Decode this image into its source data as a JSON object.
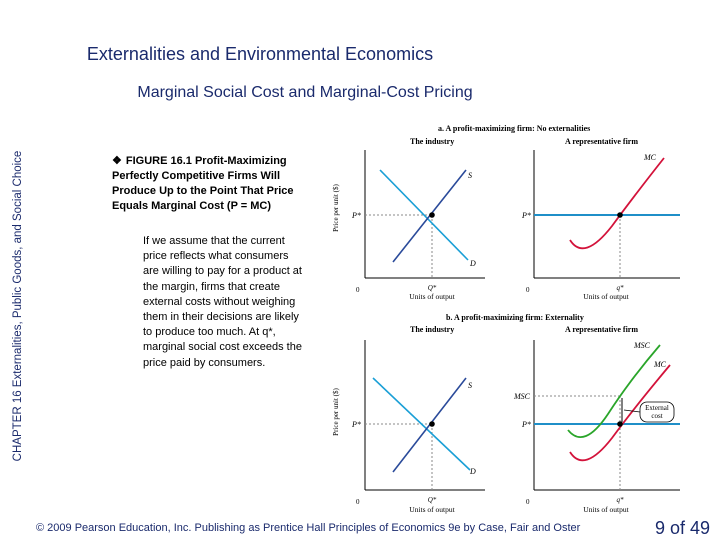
{
  "header": {
    "title": "Externalities and Environmental Economics",
    "subtitle": "Marginal Social Cost and Marginal-Cost Pricing"
  },
  "sidebar": {
    "chapter": "CHAPTER 16",
    "chapter_title": "Externalities, Public Goods, and Social Choice"
  },
  "caption": {
    "figure_label": "FIGURE 16.1",
    "figure_title": "Profit-Maximizing Perfectly Competitive Firms Will Produce Up to the Point That Price Equals Marginal Cost (P = MC)"
  },
  "body_text": "If we assume that the current price reflects what consumers are willing to pay for a product at the margin, firms that create external costs without weighing them in their decisions are likely to produce too much. At q*, marginal social cost exceeds the price paid by consumers.",
  "footer": {
    "copyright": "© 2009 Pearson Education, Inc. Publishing as Prentice Hall   Principles of Economics 9e by Case, Fair and Oster",
    "page": "9 of 49"
  },
  "diagram": {
    "panel_a": {
      "title": "a. A profit-maximizing firm: No externalities",
      "industry_label": "The industry",
      "firm_label": "A representative firm",
      "ylabel": "Price per unit ($)",
      "xlabel_left": "Units of output",
      "xlabel_right": "Units of output",
      "price_label_left": "P*",
      "price_label_right": "P*",
      "supply_label": "S",
      "demand_label": "D",
      "mc_label": "MC",
      "q_label_left": "Q*",
      "q_label_right": "q*",
      "zero": "0"
    },
    "panel_b": {
      "title": "b. A profit-maximizing firm: Externality",
      "industry_label": "The industry",
      "firm_label": "A representative firm",
      "ylabel": "Price per unit ($)",
      "xlabel_left": "Units of output",
      "xlabel_right": "Units of output",
      "price_label_left": "P*",
      "price_label_right": "P*",
      "msc_axis_label": "MSC",
      "supply_label": "S",
      "demand_label": "D",
      "msc_label": "MSC",
      "mc_label": "MC",
      "external_cost_label_1": "External",
      "external_cost_label_2": "cost",
      "q_label_left": "Q*",
      "q_label_right": "q*",
      "zero": "0"
    },
    "colors": {
      "supply": "#1a9fd6",
      "demand": "#2a4a9a",
      "mc": "#d3123a",
      "price_line": "#1f8fc8",
      "msc": "#2aa52a"
    }
  }
}
